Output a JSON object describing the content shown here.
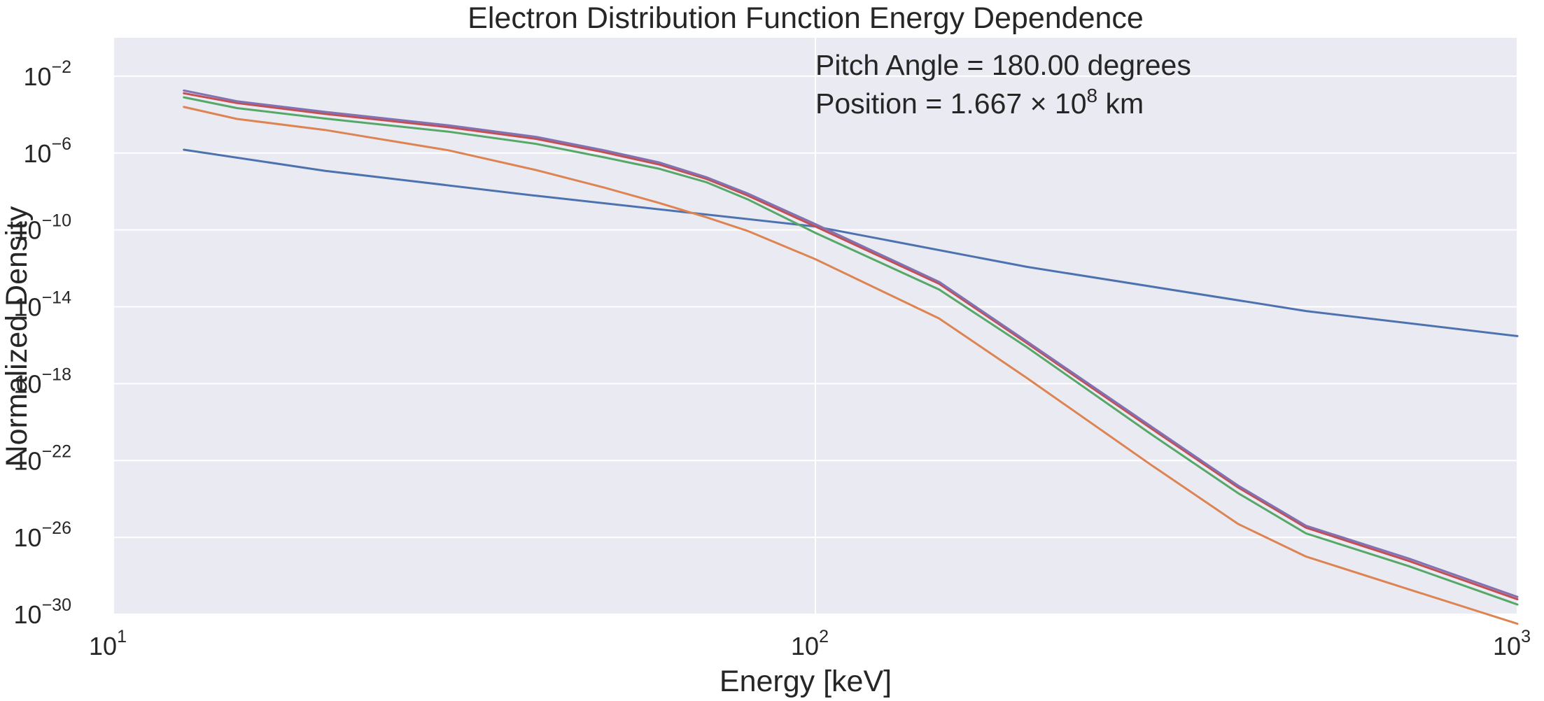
{
  "chart_data": {
    "type": "line",
    "title": "Electron Distribution Function Energy Dependence",
    "xlabel": "Energy [keV]",
    "ylabel": "Normalized Density",
    "xscale": "log",
    "yscale": "log",
    "xlim": [
      10,
      1000
    ],
    "ylim": [
      1e-30,
      1.0
    ],
    "grid": true,
    "x_ticks": [
      {
        "base": "10",
        "exp": "1"
      },
      {
        "base": "10",
        "exp": "2"
      },
      {
        "base": "10",
        "exp": "3"
      }
    ],
    "y_ticks": [
      {
        "base": "10",
        "exp": "−2",
        "value_exp": -2
      },
      {
        "base": "10",
        "exp": "−6",
        "value_exp": -6
      },
      {
        "base": "10",
        "exp": "−10",
        "value_exp": -10
      },
      {
        "base": "10",
        "exp": "−14",
        "value_exp": -14
      },
      {
        "base": "10",
        "exp": "−18",
        "value_exp": -18
      },
      {
        "base": "10",
        "exp": "−22",
        "value_exp": -22
      },
      {
        "base": "10",
        "exp": "−26",
        "value_exp": -26
      },
      {
        "base": "10",
        "exp": "−30",
        "value_exp": -30
      }
    ],
    "annotations": {
      "pitch_angle": "Pitch Angle = 180.00 degrees",
      "position_prefix": "Position = 1.667 × 10",
      "position_exp": "8",
      "position_suffix": " km"
    },
    "series": [
      {
        "color": "#4c72b0",
        "x": [
          12.6,
          20,
          40,
          100,
          200,
          500,
          1000
        ],
        "y": [
          1.5e-06,
          1.2e-07,
          6e-09,
          1.5e-10,
          1.2e-12,
          6e-15,
          3e-16
        ]
      },
      {
        "color": "#dd8452",
        "x": [
          12.6,
          15,
          20,
          30,
          40,
          50,
          60,
          70,
          80,
          100,
          150,
          200,
          300,
          400,
          500,
          700,
          1000
        ],
        "y": [
          0.00025,
          6e-05,
          1.6e-05,
          1.4e-06,
          1.3e-07,
          1.6e-08,
          2.5e-09,
          4.5e-10,
          9e-11,
          3e-12,
          2.5e-15,
          2e-18,
          6.3e-23,
          5e-26,
          1e-27,
          2e-29,
          3.2e-31
        ]
      },
      {
        "color": "#55a868",
        "x": [
          12.6,
          15,
          20,
          30,
          40,
          50,
          60,
          70,
          80,
          100,
          150,
          200,
          300,
          400,
          500,
          700,
          1000
        ],
        "y": [
          0.0008,
          0.00022,
          6.3e-05,
          1.3e-05,
          3e-06,
          6e-07,
          1.5e-07,
          3e-08,
          4e-09,
          7e-11,
          8e-14,
          8e-17,
          2.5e-21,
          2e-24,
          1.6e-26,
          3.2e-28,
          3.2e-30
        ]
      },
      {
        "color": "#c44e52",
        "x": [
          12.6,
          15,
          20,
          30,
          40,
          50,
          60,
          70,
          80,
          100,
          150,
          200,
          300,
          400,
          500,
          700,
          1000
        ],
        "y": [
          0.0013,
          0.0004,
          0.00011,
          2.2e-05,
          5.5e-06,
          1.1e-06,
          2.5e-07,
          4.5e-08,
          6.3e-09,
          1.5e-10,
          1.6e-13,
          1.3e-16,
          5e-21,
          4e-24,
          3.2e-26,
          6e-28,
          6e-30
        ]
      },
      {
        "color": "#8172b3",
        "x": [
          12.6,
          15,
          20,
          30,
          40,
          50,
          60,
          70,
          80,
          100,
          150,
          200,
          300,
          400,
          500,
          700,
          1000
        ],
        "y": [
          0.0018,
          0.0005,
          0.00014,
          2.8e-05,
          7e-06,
          1.4e-06,
          3.2e-07,
          5.5e-08,
          8e-09,
          2e-10,
          2e-13,
          1.6e-16,
          6.3e-21,
          5e-24,
          4e-26,
          8e-28,
          8e-30
        ]
      }
    ]
  }
}
